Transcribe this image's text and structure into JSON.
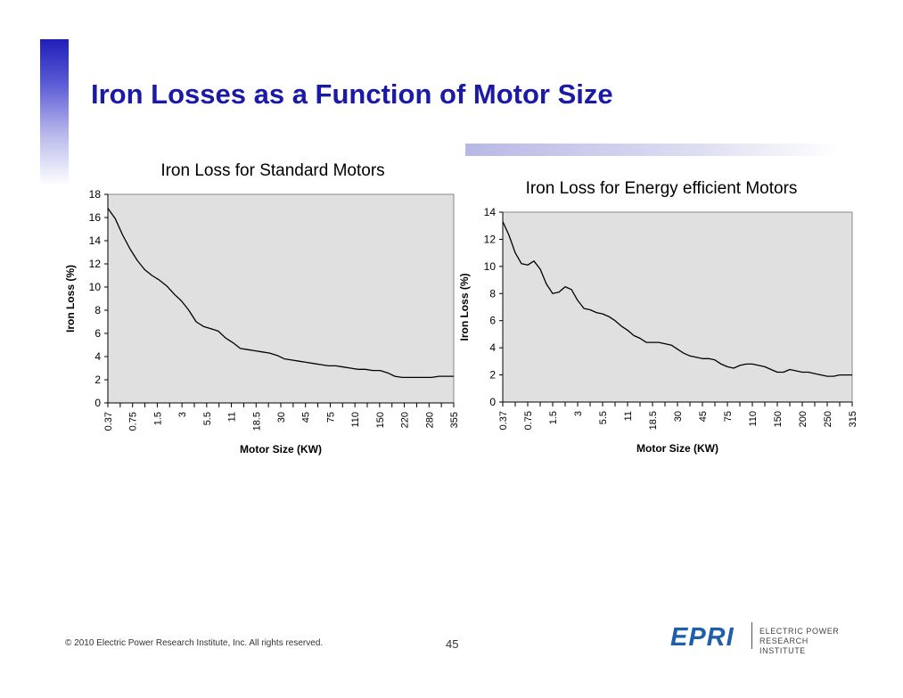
{
  "slide": {
    "title": "Iron Losses as a Function of Motor Size",
    "copyright": "© 2010 Electric Power Research Institute, Inc. All rights reserved.",
    "page_number": "45",
    "logo_text": "EPRI",
    "logo_subtitle_line1": "ELECTRIC POWER",
    "logo_subtitle_line2": "RESEARCH INSTITUTE",
    "accent_color": "#1a1aa6"
  },
  "chart_data": [
    {
      "type": "line",
      "title": "Iron Loss for Standard Motors",
      "xlabel": "Motor Size (KW)",
      "ylabel": "Iron Loss (%)",
      "ylim": [
        0,
        18
      ],
      "yticks": [
        0,
        2,
        4,
        6,
        8,
        10,
        12,
        14,
        16,
        18
      ],
      "xtick_labels": [
        "0.37",
        "0.75",
        "1.5",
        "3",
        "5.5",
        "11",
        "18.5",
        "30",
        "45",
        "75",
        "110",
        "150",
        "220",
        "280",
        "355"
      ],
      "plot_background": "#e0e0e0",
      "line_color": "#000000",
      "values": [
        16.8,
        15.9,
        14.5,
        13.3,
        12.3,
        11.5,
        11.0,
        10.6,
        10.1,
        9.4,
        8.8,
        8.0,
        7.0,
        6.6,
        6.4,
        6.2,
        5.6,
        5.2,
        4.7,
        4.6,
        4.5,
        4.4,
        4.3,
        4.1,
        3.8,
        3.7,
        3.6,
        3.5,
        3.4,
        3.3,
        3.2,
        3.2,
        3.1,
        3.0,
        2.9,
        2.9,
        2.8,
        2.8,
        2.6,
        2.3,
        2.2,
        2.2,
        2.2,
        2.2,
        2.2,
        2.3,
        2.3,
        2.3
      ]
    },
    {
      "type": "line",
      "title": "Iron Loss for Energy efficient Motors",
      "xlabel": "Motor Size (KW)",
      "ylabel": "Iron Loss (%)",
      "ylim": [
        0,
        14
      ],
      "yticks": [
        0,
        2,
        4,
        6,
        8,
        10,
        12,
        14
      ],
      "xtick_labels": [
        "0.37",
        "0.75",
        "1.5",
        "3",
        "5.5",
        "11",
        "18.5",
        "30",
        "45",
        "75",
        "110",
        "150",
        "200",
        "250",
        "315"
      ],
      "plot_background": "#e0e0e0",
      "line_color": "#000000",
      "values": [
        13.3,
        12.3,
        11.0,
        10.2,
        10.1,
        10.4,
        9.8,
        8.7,
        8.0,
        8.1,
        8.5,
        8.3,
        7.5,
        6.9,
        6.8,
        6.6,
        6.5,
        6.3,
        6.0,
        5.6,
        5.3,
        4.9,
        4.7,
        4.4,
        4.4,
        4.4,
        4.3,
        4.2,
        3.9,
        3.6,
        3.4,
        3.3,
        3.2,
        3.2,
        3.1,
        2.8,
        2.6,
        2.5,
        2.7,
        2.8,
        2.8,
        2.7,
        2.6,
        2.4,
        2.2,
        2.2,
        2.4,
        2.3,
        2.2,
        2.2,
        2.1,
        2.0,
        1.9,
        1.9,
        2.0,
        2.0,
        2.0
      ]
    }
  ]
}
